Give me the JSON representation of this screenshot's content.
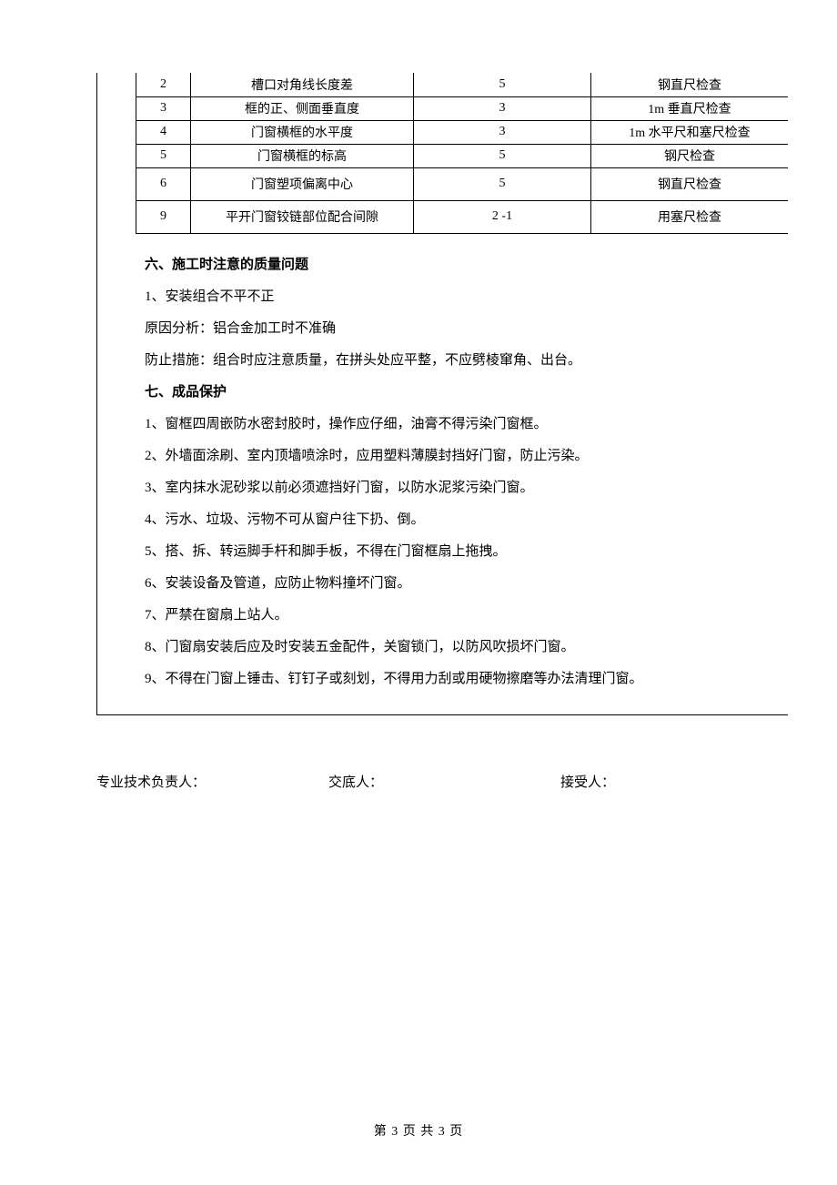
{
  "table": {
    "columns": [
      "num",
      "item",
      "value",
      "method"
    ],
    "rows": [
      {
        "num": "2",
        "item": "槽口对角线长度差",
        "value": "5",
        "method": "钢直尺检查",
        "tall": false
      },
      {
        "num": "3",
        "item": "框的正、侧面垂直度",
        "value": "3",
        "method": "1m 垂直尺检查",
        "tall": false
      },
      {
        "num": "4",
        "item": "门窗横框的水平度",
        "value": "3",
        "method": "1m 水平尺和塞尺检查",
        "tall": false
      },
      {
        "num": "5",
        "item": "门窗横框的标高",
        "value": "5",
        "method": "钢尺检查",
        "tall": false
      },
      {
        "num": "6",
        "item": "门窗塑项偏离中心",
        "value": "5",
        "method": "钢直尺检查",
        "tall": true
      },
      {
        "num": "9",
        "item": "平开门窗铰链部位配合间隙",
        "value": "2 -1",
        "method": "用塞尺检查",
        "tall": true
      }
    ]
  },
  "section6": {
    "title": "六、施工时注意的质量问题",
    "lines": [
      "1、安装组合不平不正",
      "原因分析：铝合金加工时不准确",
      "防止措施：组合时应注意质量，在拼头处应平整，不应劈棱窜角、出台。"
    ]
  },
  "section7": {
    "title": "七、成品保护",
    "lines": [
      "1、窗框四周嵌防水密封胶时，操作应仔细，油膏不得污染门窗框。",
      "2、外墙面涂刷、室内顶墙喷涂时，应用塑料薄膜封挡好门窗，防止污染。",
      "3、室内抹水泥砂浆以前必须遮挡好门窗，以防水泥浆污染门窗。",
      "4、污水、垃圾、污物不可从窗户往下扔、倒。",
      "5、搭、拆、转运脚手杆和脚手板，不得在门窗框扇上拖拽。",
      "6、安装设备及管道，应防止物料撞坏门窗。",
      "7、严禁在窗扇上站人。",
      "8、门窗扇安装后应及时安装五金配件，关窗锁门，以防风吹损坏门窗。",
      "9、不得在门窗上锤击、钉钉子或刻划，不得用力刮或用硬物擦磨等办法清理门窗。"
    ]
  },
  "signatures": {
    "role1": "专业技术负责人：",
    "role2": "交底人：",
    "role3": "接受人："
  },
  "footer": "第 3 页 共 3 页"
}
